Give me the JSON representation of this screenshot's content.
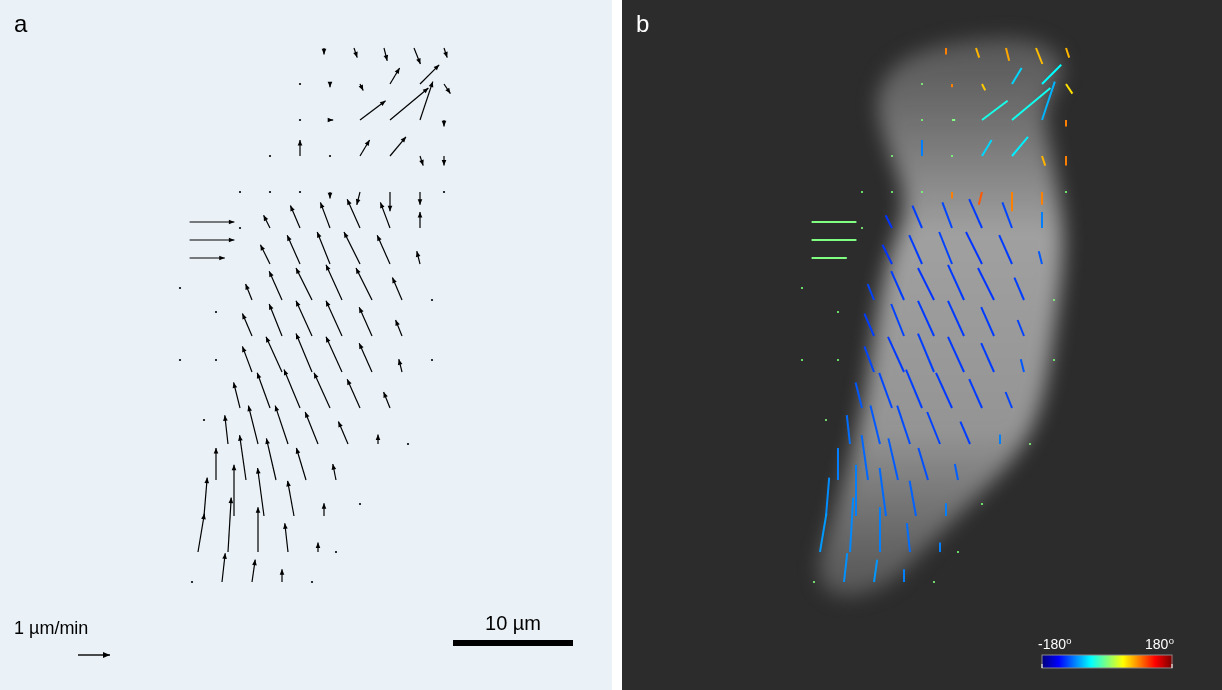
{
  "chart_data": [
    {
      "type": "quiver",
      "panel_label": "a",
      "marker": "arrow",
      "color": "#000000",
      "tick_labels": false,
      "grid": false,
      "xlim": [
        0,
        51
      ],
      "ylim": [
        0,
        57.5
      ],
      "scale_arrow": {
        "value": 1,
        "label": "1 µm/min"
      },
      "scale_bar": {
        "value": 10,
        "label": "10 µm"
      },
      "vectors": [
        [
          27,
          4,
          0,
          0.2
        ],
        [
          29.5,
          4,
          0.1,
          0.3
        ],
        [
          32,
          4,
          0.1,
          0.4
        ],
        [
          34.5,
          4,
          0.2,
          0.5
        ],
        [
          37,
          4,
          0.1,
          0.3
        ],
        [
          25,
          7,
          0,
          0
        ],
        [
          27.5,
          7,
          0,
          0.1
        ],
        [
          30,
          7,
          0.1,
          0.2
        ],
        [
          32.5,
          7,
          0.3,
          -0.5
        ],
        [
          35,
          7,
          0.6,
          -0.6
        ],
        [
          37,
          7,
          0.2,
          0.3
        ],
        [
          25,
          10,
          0,
          0
        ],
        [
          27.5,
          10,
          0.1,
          0
        ],
        [
          30,
          10,
          0.8,
          -0.6
        ],
        [
          32.5,
          10,
          1.2,
          -1.0
        ],
        [
          35,
          10,
          0.4,
          -1.2
        ],
        [
          37,
          10,
          0,
          0.2
        ],
        [
          22.5,
          13,
          0,
          0
        ],
        [
          25,
          13,
          0,
          -0.5
        ],
        [
          27.5,
          13,
          0,
          0
        ],
        [
          30,
          13,
          0.3,
          -0.5
        ],
        [
          32.5,
          13,
          0.5,
          -0.6
        ],
        [
          35,
          13,
          0.1,
          0.3
        ],
        [
          37,
          13,
          0,
          0.3
        ],
        [
          20,
          16,
          0,
          0
        ],
        [
          22.5,
          16,
          0,
          0
        ],
        [
          25,
          16,
          0,
          0
        ],
        [
          27.5,
          16,
          0,
          0.2
        ],
        [
          30,
          16,
          -0.1,
          0.4
        ],
        [
          32.5,
          16,
          0,
          0.6
        ],
        [
          35,
          16,
          0,
          0.4
        ],
        [
          37,
          16,
          0,
          0
        ],
        [
          15.8,
          18.5,
          1.4,
          0
        ],
        [
          15.8,
          20,
          1.4,
          0
        ],
        [
          15.8,
          21.5,
          1.1,
          0
        ],
        [
          20,
          19,
          0,
          0
        ],
        [
          22.5,
          19,
          -0.2,
          -0.4
        ],
        [
          25,
          19,
          -0.3,
          -0.7
        ],
        [
          27.5,
          19,
          -0.3,
          -0.8
        ],
        [
          30,
          19,
          -0.4,
          -0.9
        ],
        [
          32.5,
          19,
          -0.3,
          -0.8
        ],
        [
          35,
          19,
          0,
          -0.5
        ],
        [
          22.5,
          22,
          -0.3,
          -0.6
        ],
        [
          25,
          22,
          -0.4,
          -0.9
        ],
        [
          27.5,
          22,
          -0.4,
          -1.0
        ],
        [
          30,
          22,
          -0.5,
          -1.0
        ],
        [
          32.5,
          22,
          -0.4,
          -0.9
        ],
        [
          35,
          22,
          -0.1,
          -0.4
        ],
        [
          15,
          24,
          0,
          0
        ],
        [
          36,
          25,
          0,
          0
        ],
        [
          21,
          25,
          -0.2,
          -0.5
        ],
        [
          23.5,
          25,
          -0.4,
          -0.9
        ],
        [
          26,
          25,
          -0.5,
          -1.0
        ],
        [
          28.5,
          25,
          -0.5,
          -1.1
        ],
        [
          31,
          25,
          -0.5,
          -1.0
        ],
        [
          33.5,
          25,
          -0.3,
          -0.7
        ],
        [
          18,
          26,
          0,
          0
        ],
        [
          21,
          28,
          -0.3,
          -0.7
        ],
        [
          23.5,
          28,
          -0.4,
          -1.0
        ],
        [
          26,
          28,
          -0.5,
          -1.1
        ],
        [
          28.5,
          28,
          -0.5,
          -1.1
        ],
        [
          31,
          28,
          -0.4,
          -0.9
        ],
        [
          33.5,
          28,
          -0.2,
          -0.5
        ],
        [
          15,
          30,
          0,
          0
        ],
        [
          18,
          30,
          0,
          0
        ],
        [
          36,
          30,
          0,
          0
        ],
        [
          21,
          31,
          -0.3,
          -0.8
        ],
        [
          23.5,
          31,
          -0.5,
          -1.1
        ],
        [
          26,
          31,
          -0.5,
          -1.2
        ],
        [
          28.5,
          31,
          -0.5,
          -1.1
        ],
        [
          31,
          31,
          -0.4,
          -0.9
        ],
        [
          33.5,
          31,
          -0.1,
          -0.4
        ],
        [
          20,
          34,
          -0.2,
          -0.8
        ],
        [
          22.5,
          34,
          -0.4,
          -1.1
        ],
        [
          25,
          34,
          -0.5,
          -1.2
        ],
        [
          27.5,
          34,
          -0.5,
          -1.1
        ],
        [
          30,
          34,
          -0.4,
          -0.9
        ],
        [
          32.5,
          34,
          -0.2,
          -0.5
        ],
        [
          17,
          35,
          0,
          0
        ],
        [
          34,
          37,
          0,
          0
        ],
        [
          19,
          37,
          -0.1,
          -0.9
        ],
        [
          21.5,
          37,
          -0.3,
          -1.2
        ],
        [
          24,
          37,
          -0.4,
          -1.2
        ],
        [
          26.5,
          37,
          -0.4,
          -1.0
        ],
        [
          29,
          37,
          -0.3,
          -0.7
        ],
        [
          31.5,
          37,
          0,
          -0.3
        ],
        [
          18,
          40,
          0,
          -1.0
        ],
        [
          20.5,
          40,
          -0.2,
          -1.4
        ],
        [
          23,
          40,
          -0.3,
          -1.3
        ],
        [
          25.5,
          40,
          -0.3,
          -1.0
        ],
        [
          28,
          40,
          -0.1,
          -0.5
        ],
        [
          30,
          42,
          0,
          0
        ],
        [
          17,
          43,
          0.1,
          -1.2
        ],
        [
          19.5,
          43,
          0,
          -1.6
        ],
        [
          22,
          43,
          -0.2,
          -1.5
        ],
        [
          24.5,
          43,
          -0.2,
          -1.1
        ],
        [
          27,
          43,
          0,
          -0.4
        ],
        [
          16.5,
          46,
          0.2,
          -1.2
        ],
        [
          19,
          46,
          0.1,
          -1.7
        ],
        [
          21.5,
          46,
          0,
          -1.4
        ],
        [
          24,
          46,
          -0.1,
          -0.9
        ],
        [
          26.5,
          46,
          0,
          -0.3
        ],
        [
          28,
          46,
          0,
          0
        ],
        [
          16,
          48.5,
          0,
          0
        ],
        [
          18.5,
          48.5,
          0.1,
          -0.9
        ],
        [
          21,
          48.5,
          0.1,
          -0.7
        ],
        [
          23.5,
          48.5,
          0,
          -0.4
        ],
        [
          26,
          48.5,
          0,
          0
        ]
      ]
    },
    {
      "type": "quiver",
      "panel_label": "b",
      "marker": "segment",
      "tick_labels": false,
      "grid": false,
      "xlim": [
        0,
        50
      ],
      "ylim": [
        0,
        57.5
      ],
      "colorbar": {
        "range": [
          -180,
          180
        ],
        "ticks": [
          {
            "value": -180,
            "label": "-180⁰"
          },
          {
            "value": 180,
            "label": "180⁰"
          }
        ]
      },
      "cell_outline": [
        [
          23,
          5
        ],
        [
          27,
          3.5
        ],
        [
          33,
          3
        ],
        [
          36,
          4
        ],
        [
          37,
          6
        ],
        [
          35,
          9
        ],
        [
          36,
          14
        ],
        [
          37,
          20
        ],
        [
          36,
          28
        ],
        [
          35,
          34
        ],
        [
          33,
          38
        ],
        [
          29,
          42
        ],
        [
          25,
          46
        ],
        [
          22,
          49
        ],
        [
          18,
          50
        ],
        [
          16,
          48
        ],
        [
          18,
          42
        ],
        [
          20,
          35
        ],
        [
          21,
          28
        ],
        [
          22,
          22
        ],
        [
          24,
          17
        ],
        [
          22,
          12
        ],
        [
          21,
          8
        ]
      ],
      "vectors": [
        [
          27,
          4,
          0,
          0.2
        ],
        [
          29.5,
          4,
          0.1,
          0.3
        ],
        [
          32,
          4,
          0.1,
          0.4
        ],
        [
          34.5,
          4,
          0.2,
          0.5
        ],
        [
          37,
          4,
          0.1,
          0.3
        ],
        [
          25,
          7,
          0,
          0
        ],
        [
          27.5,
          7,
          0,
          0.1
        ],
        [
          30,
          7,
          0.1,
          0.2
        ],
        [
          32.5,
          7,
          0.3,
          -0.5
        ],
        [
          35,
          7,
          0.6,
          -0.6
        ],
        [
          37,
          7,
          0.2,
          0.3
        ],
        [
          25,
          10,
          0,
          0
        ],
        [
          27.5,
          10,
          0.1,
          0
        ],
        [
          30,
          10,
          0.8,
          -0.6
        ],
        [
          32.5,
          10,
          1.2,
          -1.0
        ],
        [
          35,
          10,
          0.4,
          -1.2
        ],
        [
          37,
          10,
          0,
          0.2
        ],
        [
          22.5,
          13,
          0,
          0
        ],
        [
          25,
          13,
          0,
          -0.5
        ],
        [
          27.5,
          13,
          0,
          0
        ],
        [
          30,
          13,
          0.3,
          -0.5
        ],
        [
          32.5,
          13,
          0.5,
          -0.6
        ],
        [
          35,
          13,
          0.1,
          0.3
        ],
        [
          37,
          13,
          0,
          0.3
        ],
        [
          20,
          16,
          0,
          0
        ],
        [
          22.5,
          16,
          0,
          0
        ],
        [
          25,
          16,
          0,
          0
        ],
        [
          27.5,
          16,
          0,
          0.2
        ],
        [
          30,
          16,
          -0.1,
          0.4
        ],
        [
          32.5,
          16,
          0,
          0.6
        ],
        [
          35,
          16,
          0,
          0.4
        ],
        [
          37,
          16,
          0,
          0
        ],
        [
          15.8,
          18.5,
          1.4,
          0
        ],
        [
          15.8,
          20,
          1.4,
          0
        ],
        [
          15.8,
          21.5,
          1.1,
          0
        ],
        [
          20,
          19,
          0,
          0
        ],
        [
          22.5,
          19,
          -0.2,
          -0.4
        ],
        [
          25,
          19,
          -0.3,
          -0.7
        ],
        [
          27.5,
          19,
          -0.3,
          -0.8
        ],
        [
          30,
          19,
          -0.4,
          -0.9
        ],
        [
          32.5,
          19,
          -0.3,
          -0.8
        ],
        [
          35,
          19,
          0,
          -0.5
        ],
        [
          22.5,
          22,
          -0.3,
          -0.6
        ],
        [
          25,
          22,
          -0.4,
          -0.9
        ],
        [
          27.5,
          22,
          -0.4,
          -1.0
        ],
        [
          30,
          22,
          -0.5,
          -1.0
        ],
        [
          32.5,
          22,
          -0.4,
          -0.9
        ],
        [
          35,
          22,
          -0.1,
          -0.4
        ],
        [
          15,
          24,
          0,
          0
        ],
        [
          36,
          25,
          0,
          0
        ],
        [
          21,
          25,
          -0.2,
          -0.5
        ],
        [
          23.5,
          25,
          -0.4,
          -0.9
        ],
        [
          26,
          25,
          -0.5,
          -1.0
        ],
        [
          28.5,
          25,
          -0.5,
          -1.1
        ],
        [
          31,
          25,
          -0.5,
          -1.0
        ],
        [
          33.5,
          25,
          -0.3,
          -0.7
        ],
        [
          18,
          26,
          0,
          0
        ],
        [
          21,
          28,
          -0.3,
          -0.7
        ],
        [
          23.5,
          28,
          -0.4,
          -1.0
        ],
        [
          26,
          28,
          -0.5,
          -1.1
        ],
        [
          28.5,
          28,
          -0.5,
          -1.1
        ],
        [
          31,
          28,
          -0.4,
          -0.9
        ],
        [
          33.5,
          28,
          -0.2,
          -0.5
        ],
        [
          15,
          30,
          0,
          0
        ],
        [
          18,
          30,
          0,
          0
        ],
        [
          36,
          30,
          0,
          0
        ],
        [
          21,
          31,
          -0.3,
          -0.8
        ],
        [
          23.5,
          31,
          -0.5,
          -1.1
        ],
        [
          26,
          31,
          -0.5,
          -1.2
        ],
        [
          28.5,
          31,
          -0.5,
          -1.1
        ],
        [
          31,
          31,
          -0.4,
          -0.9
        ],
        [
          33.5,
          31,
          -0.1,
          -0.4
        ],
        [
          20,
          34,
          -0.2,
          -0.8
        ],
        [
          22.5,
          34,
          -0.4,
          -1.1
        ],
        [
          25,
          34,
          -0.5,
          -1.2
        ],
        [
          27.5,
          34,
          -0.5,
          -1.1
        ],
        [
          30,
          34,
          -0.4,
          -0.9
        ],
        [
          32.5,
          34,
          -0.2,
          -0.5
        ],
        [
          17,
          35,
          0,
          0
        ],
        [
          34,
          37,
          0,
          0
        ],
        [
          19,
          37,
          -0.1,
          -0.9
        ],
        [
          21.5,
          37,
          -0.3,
          -1.2
        ],
        [
          24,
          37,
          -0.4,
          -1.2
        ],
        [
          26.5,
          37,
          -0.4,
          -1.0
        ],
        [
          29,
          37,
          -0.3,
          -0.7
        ],
        [
          31.5,
          37,
          0,
          -0.3
        ],
        [
          18,
          40,
          0,
          -1.0
        ],
        [
          20.5,
          40,
          -0.2,
          -1.4
        ],
        [
          23,
          40,
          -0.3,
          -1.3
        ],
        [
          25.5,
          40,
          -0.3,
          -1.0
        ],
        [
          28,
          40,
          -0.1,
          -0.5
        ],
        [
          30,
          42,
          0,
          0
        ],
        [
          17,
          43,
          0.1,
          -1.2
        ],
        [
          19.5,
          43,
          0,
          -1.6
        ],
        [
          22,
          43,
          -0.2,
          -1.5
        ],
        [
          24.5,
          43,
          -0.2,
          -1.1
        ],
        [
          27,
          43,
          0,
          -0.4
        ],
        [
          16.5,
          46,
          0.2,
          -1.2
        ],
        [
          19,
          46,
          0.1,
          -1.7
        ],
        [
          21.5,
          46,
          0,
          -1.4
        ],
        [
          24,
          46,
          -0.1,
          -0.9
        ],
        [
          26.5,
          46,
          0,
          -0.3
        ],
        [
          28,
          46,
          0,
          0
        ],
        [
          16,
          48.5,
          0,
          0
        ],
        [
          18.5,
          48.5,
          0.1,
          -0.9
        ],
        [
          21,
          48.5,
          0.1,
          -0.7
        ],
        [
          23.5,
          48.5,
          0,
          -0.4
        ],
        [
          26,
          48.5,
          0,
          0
        ]
      ]
    }
  ]
}
